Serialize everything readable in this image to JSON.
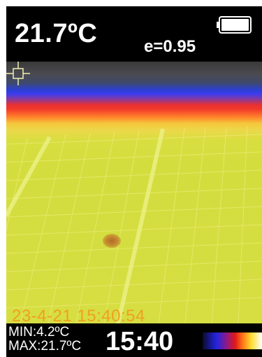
{
  "header": {
    "temperature": "21.7ºC",
    "emissivity": "e=0.95",
    "battery_icon": "battery-full-icon"
  },
  "image": {
    "timestamp": "23-4-21 15:40:54",
    "crosshair_icon": "crosshair-icon"
  },
  "footer": {
    "min": "MIN:4.2ºC",
    "max": "MAX:21.7ºC",
    "time": "15:40",
    "palette": "ironbow-palette"
  },
  "colors": {
    "background": "#000000",
    "text": "#ffffff",
    "timestamp": "#f0a020"
  }
}
